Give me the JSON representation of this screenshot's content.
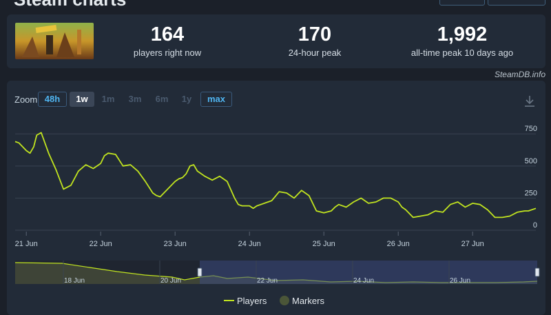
{
  "header": {
    "title": "Steam charts"
  },
  "stats": [
    {
      "value": "164",
      "label": "players right now"
    },
    {
      "value": "170",
      "label": "24-hour peak"
    },
    {
      "value": "1,992",
      "label": "all-time peak 10 days ago"
    }
  ],
  "credit": "SteamDB.info",
  "zoom": {
    "label": "Zoom",
    "buttons": [
      {
        "label": "48h",
        "state": "active"
      },
      {
        "label": "1w",
        "state": "pressed"
      },
      {
        "label": "1m",
        "state": "disabled"
      },
      {
        "label": "3m",
        "state": "disabled"
      },
      {
        "label": "6m",
        "state": "disabled"
      },
      {
        "label": "1y",
        "state": "disabled"
      },
      {
        "label": "max",
        "state": "active"
      }
    ]
  },
  "colors": {
    "line": "#c2e51f",
    "grid": "#3a4352",
    "navigator_fill": "#3e4437",
    "navigator_selection": "#3a4a80",
    "marker": "#4b5638"
  },
  "legend": [
    {
      "name": "Players",
      "icon": "line-swatch-icon"
    },
    {
      "name": "Markers",
      "icon": "circle-swatch-icon"
    }
  ],
  "chart_data": {
    "type": "line",
    "x_ticks": [
      "21 Jun",
      "22 Jun",
      "23 Jun",
      "24 Jun",
      "25 Jun",
      "26 Jun",
      "27 Jun"
    ],
    "y_ticks": [
      "0",
      "250",
      "500",
      "750"
    ],
    "ylim": [
      0,
      880
    ],
    "xlim": [
      -0.15,
      6.85
    ],
    "grid": true,
    "legend_position": "bottom",
    "series": [
      {
        "name": "Players",
        "x": [
          -0.15,
          -0.1,
          -0.05,
          0,
          0.05,
          0.1,
          0.14,
          0.2,
          0.25,
          0.3,
          0.4,
          0.5,
          0.6,
          0.7,
          0.8,
          0.9,
          1.0,
          1.05,
          1.1,
          1.2,
          1.3,
          1.4,
          1.5,
          1.6,
          1.7,
          1.75,
          1.8,
          1.9,
          2.0,
          2.05,
          2.1,
          2.15,
          2.2,
          2.25,
          2.3,
          2.4,
          2.5,
          2.6,
          2.7,
          2.8,
          2.85,
          2.9,
          3.0,
          3.05,
          3.1,
          3.2,
          3.3,
          3.4,
          3.5,
          3.6,
          3.7,
          3.8,
          3.9,
          4.0,
          4.1,
          4.15,
          4.2,
          4.3,
          4.4,
          4.5,
          4.6,
          4.7,
          4.8,
          4.9,
          5.0,
          5.05,
          5.1,
          5.2,
          5.3,
          5.4,
          5.5,
          5.6,
          5.7,
          5.8,
          5.9,
          6.0,
          6.1,
          6.2,
          6.3,
          6.4,
          6.5,
          6.6,
          6.7,
          6.75,
          6.85
        ],
        "y": [
          690,
          680,
          650,
          620,
          600,
          650,
          740,
          760,
          680,
          600,
          470,
          320,
          350,
          460,
          510,
          480,
          520,
          580,
          600,
          590,
          500,
          510,
          460,
          380,
          290,
          270,
          260,
          320,
          380,
          400,
          410,
          440,
          500,
          510,
          460,
          420,
          390,
          420,
          380,
          250,
          200,
          190,
          190,
          170,
          190,
          210,
          230,
          300,
          290,
          250,
          310,
          270,
          150,
          135,
          150,
          180,
          200,
          180,
          220,
          250,
          210,
          220,
          250,
          250,
          220,
          180,
          160,
          100,
          110,
          120,
          150,
          140,
          200,
          220,
          180,
          210,
          200,
          160,
          100,
          100,
          110,
          140,
          150,
          150,
          170
        ]
      }
    ],
    "navigator": {
      "x_ticks": [
        "18 Jun",
        "20 Jun",
        "22 Jun",
        "24 Jun",
        "26 Jun"
      ]
    }
  }
}
